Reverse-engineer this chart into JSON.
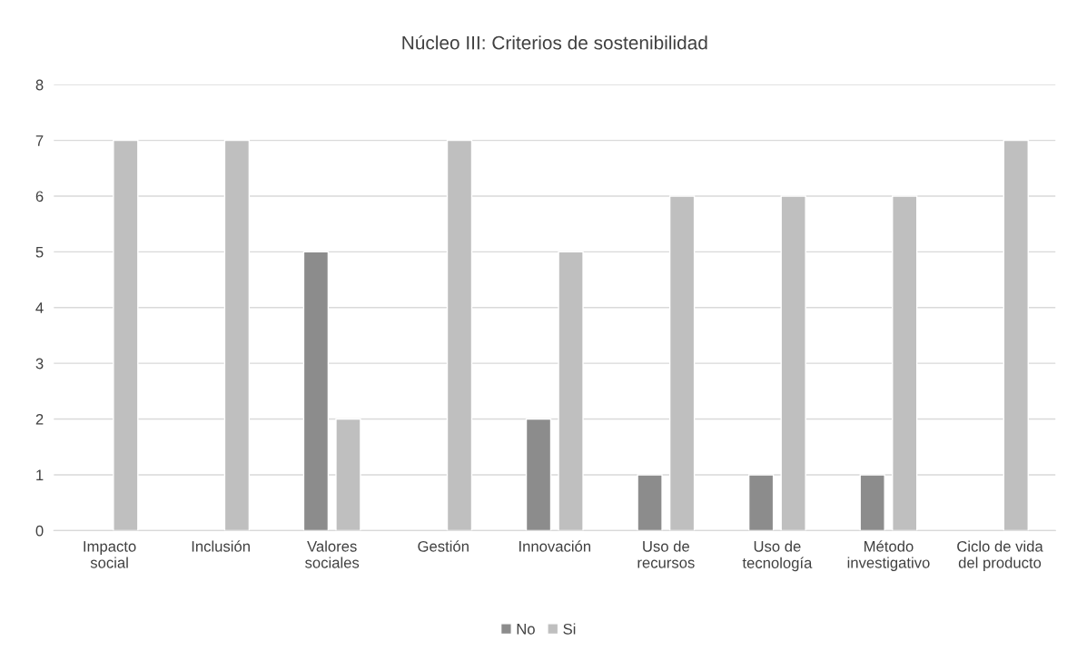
{
  "chart_data": {
    "type": "bar",
    "title": "Núcleo III: Criterios de sostenibilidad",
    "categories": [
      "Impacto\nsocial",
      "Inclusión",
      "Valores\nsociales",
      "Gestión",
      "Innovación",
      "Uso de\nrecursos",
      "Uso de\ntecnología",
      "Método\ninvestigativo",
      "Ciclo de vida\ndel producto"
    ],
    "series": [
      {
        "name": "No",
        "color": "#8c8c8c",
        "values": [
          null,
          null,
          5,
          null,
          2,
          1,
          1,
          1,
          null
        ]
      },
      {
        "name": "Si",
        "color": "#bfbfbf",
        "values": [
          7,
          7,
          2,
          7,
          5,
          6,
          6,
          6,
          7
        ]
      }
    ],
    "ylim": [
      0,
      8
    ],
    "yticks": [
      0,
      1,
      2,
      3,
      4,
      5,
      6,
      7,
      8
    ],
    "grid": "y",
    "legend": "bottom"
  }
}
